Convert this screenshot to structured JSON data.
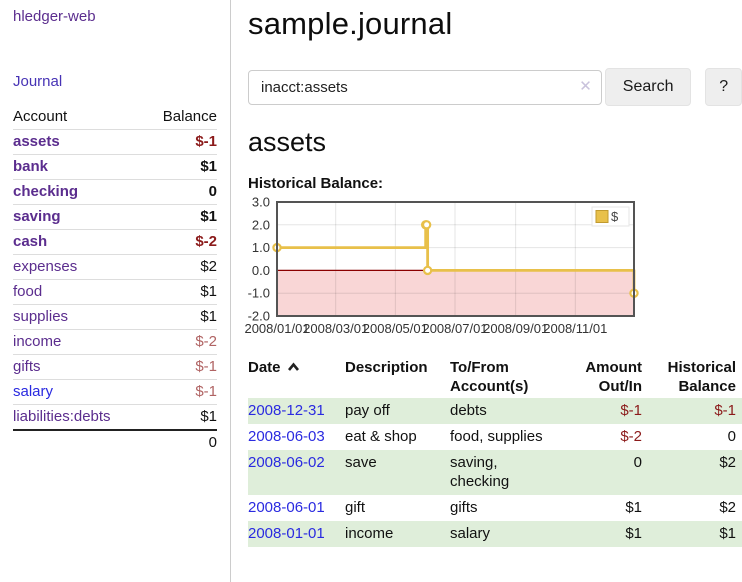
{
  "colors": {
    "link_purple": "#5b2d8e",
    "link_blue": "#2a2ae0",
    "journal_purple": "#4733b5",
    "neg_strong": "#8b1a1a",
    "neg_soft": "#b06363",
    "row_green": "#dfeeda",
    "series_yellow": "#e8c04a",
    "chart_border": "#545454",
    "zero_line": "#8b0000",
    "negative_region": "#f9d6d6"
  },
  "sidebar": {
    "brand": "hledger-web",
    "journal_link": "Journal",
    "accounts_table": {
      "account_header": "Account",
      "balance_header": "Balance",
      "rows": [
        {
          "account": "assets",
          "balance": "$-1",
          "indent": 1,
          "bold": true,
          "neg": "strong"
        },
        {
          "account": "bank",
          "balance": "$1",
          "indent": 2,
          "bold": true
        },
        {
          "account": "checking",
          "balance": "0",
          "indent": 3,
          "bold": true
        },
        {
          "account": "saving",
          "balance": "$1",
          "indent": 3,
          "bold": true
        },
        {
          "account": "cash",
          "balance": "$-2",
          "indent": 2,
          "bold": true,
          "neg": "strong"
        },
        {
          "account": "expenses",
          "balance": "$2",
          "indent": 1
        },
        {
          "account": "food",
          "balance": "$1",
          "indent": 2
        },
        {
          "account": "supplies",
          "balance": "$1",
          "indent": 2
        },
        {
          "account": "income",
          "balance": "$-2",
          "indent": 1,
          "neg": "soft"
        },
        {
          "account": "gifts",
          "balance": "$-1",
          "indent": 2,
          "neg": "soft"
        },
        {
          "account": "salary",
          "balance": "$-1",
          "indent": 2,
          "neg": "soft",
          "blue": true
        },
        {
          "account": "liabilities:debts",
          "balance": "$1",
          "indent": 1
        }
      ],
      "total": "0"
    }
  },
  "main": {
    "title": "sample.journal",
    "search": {
      "value": "inacct:assets",
      "clear_icon": "✕",
      "search_button": "Search",
      "help_button": "?"
    },
    "account_heading": "assets",
    "chart_heading": "Historical Balance:"
  },
  "chart_data": {
    "type": "line",
    "step": true,
    "title": "Historical Balance",
    "grid": true,
    "legend_position": "top-right",
    "xlim_days": [
      0,
      365
    ],
    "ylim": [
      -2,
      3
    ],
    "yticks": [
      {
        "label": "3.0",
        "value": 3
      },
      {
        "label": "2.0",
        "value": 2
      },
      {
        "label": "1.0",
        "value": 1
      },
      {
        "label": "0.0",
        "value": 0
      },
      {
        "label": "-1.0",
        "value": -1
      },
      {
        "label": "-2.0",
        "value": -2
      }
    ],
    "xticks": [
      {
        "label": "2008/01/01",
        "day": 0
      },
      {
        "label": "2008/03/01",
        "day": 60
      },
      {
        "label": "2008/05/01",
        "day": 121
      },
      {
        "label": "2008/07/01",
        "day": 182
      },
      {
        "label": "2008/09/01",
        "day": 244
      },
      {
        "label": "2008/11/01",
        "day": 305
      }
    ],
    "series": [
      {
        "name": "$",
        "color": "#e8c04a",
        "points": [
          {
            "date": "2008-01-01",
            "day": 0,
            "value": 1
          },
          {
            "date": "2008-06-01",
            "day": 152,
            "value": 2
          },
          {
            "date": "2008-06-02",
            "day": 153,
            "value": 2
          },
          {
            "date": "2008-06-03",
            "day": 154,
            "value": 0
          },
          {
            "date": "2008-12-31",
            "day": 365,
            "value": -1
          }
        ]
      }
    ]
  },
  "register": {
    "headers": [
      "Date",
      "Description",
      "To/From Account(s)",
      "Amount Out/In",
      "Historical Balance"
    ],
    "sort": "ascending",
    "rows": [
      {
        "date": "2008-12-31",
        "description": "pay off",
        "accounts": "debts",
        "amount": "$-1",
        "balance": "$-1",
        "amount_negative": true,
        "balance_negative": true
      },
      {
        "date": "2008-06-03",
        "description": "eat & shop",
        "accounts": "food, supplies",
        "amount": "$-2",
        "balance": "0",
        "amount_negative": true,
        "balance_negative": false
      },
      {
        "date": "2008-06-02",
        "description": "save",
        "accounts": "saving, checking",
        "amount": "0",
        "balance": "$2",
        "amount_negative": false,
        "balance_negative": false
      },
      {
        "date": "2008-06-01",
        "description": "gift",
        "accounts": "gifts",
        "amount": "$1",
        "balance": "$2",
        "amount_negative": false,
        "balance_negative": false
      },
      {
        "date": "2008-01-01",
        "description": "income",
        "accounts": "salary",
        "amount": "$1",
        "balance": "$1",
        "amount_negative": false,
        "balance_negative": false
      }
    ]
  }
}
